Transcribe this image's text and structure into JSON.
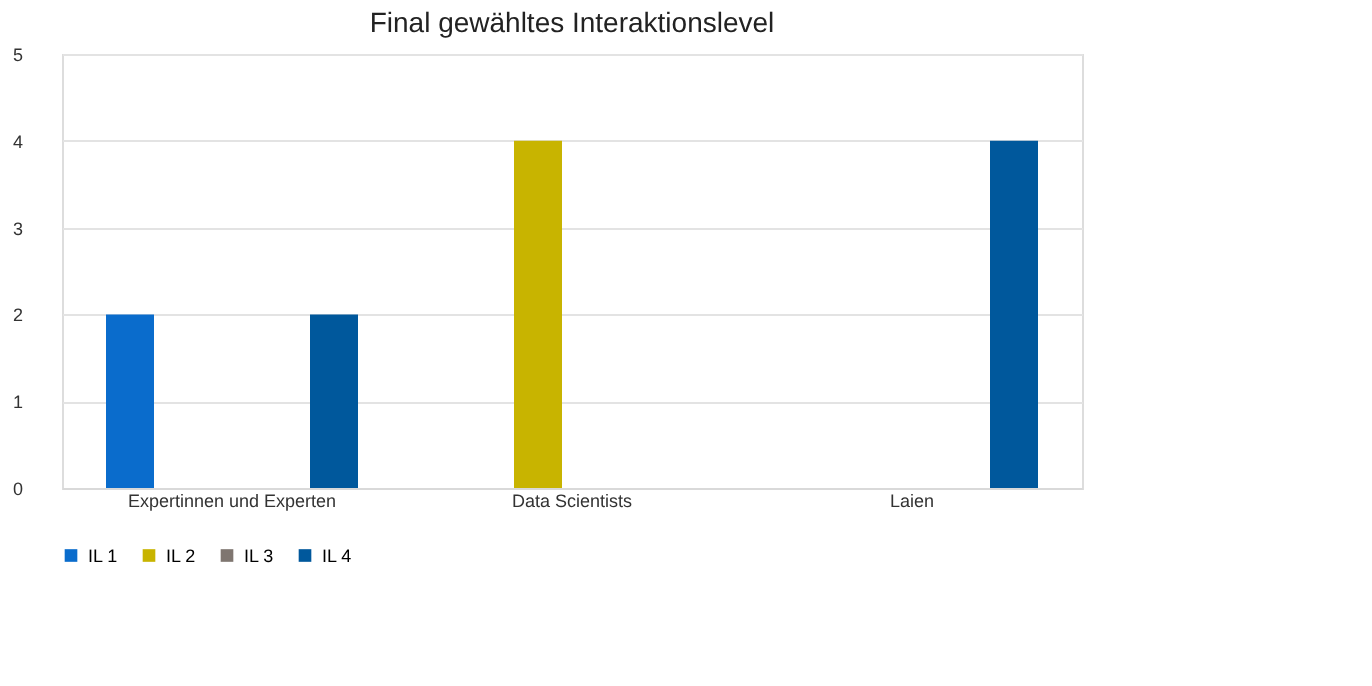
{
  "chart_data": {
    "type": "bar",
    "title": "Final gewähltes Interaktionslevel",
    "categories": [
      "Expertinnen und Experten",
      "Data Scientists",
      "Laien"
    ],
    "series": [
      {
        "name": "IL 1",
        "color": "#0a6ccc",
        "values": [
          2,
          null,
          null
        ]
      },
      {
        "name": "IL 2",
        "color": "#c8b400",
        "values": [
          null,
          4,
          null
        ]
      },
      {
        "name": "IL 3",
        "color": "#7f7670",
        "values": [
          null,
          null,
          null
        ]
      },
      {
        "name": "IL 4",
        "color": "#00589c",
        "values": [
          2,
          null,
          4
        ]
      }
    ],
    "ylim": [
      0,
      5
    ],
    "yticks": [
      0,
      1,
      2,
      3,
      4,
      5
    ],
    "grid": "y",
    "legend": "bottom"
  }
}
